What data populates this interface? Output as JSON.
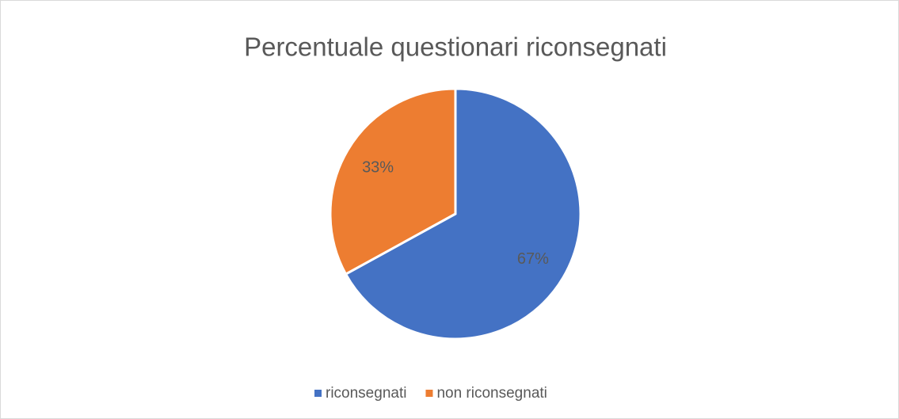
{
  "chart_data": {
    "type": "pie",
    "title": "Percentuale questionari riconsegnati",
    "categories": [
      "riconsegnati",
      "non riconsegnati"
    ],
    "values": [
      67,
      33
    ],
    "value_labels": [
      "67%",
      "33%"
    ],
    "colors": [
      "#4472c4",
      "#ed7d31"
    ],
    "legend": "bottom"
  }
}
